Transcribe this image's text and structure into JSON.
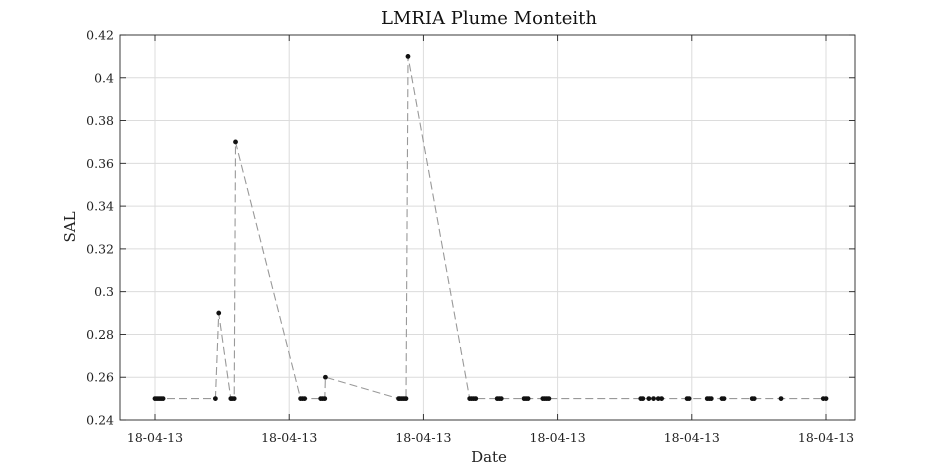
{
  "chart_data": {
    "type": "line",
    "title": "LMRIA Plume Monteith",
    "xlabel": "Date",
    "ylabel": "SAL",
    "xlim": [
      0,
      1000
    ],
    "ylim": [
      0.24,
      0.42
    ],
    "x_ticks": [
      0,
      200,
      400,
      600,
      800,
      1000
    ],
    "x_tick_labels": [
      "18-04-13",
      "18-04-13",
      "18-04-13",
      "18-04-13",
      "18-04-13",
      "18-04-13"
    ],
    "y_ticks": [
      0.24,
      0.26,
      0.28,
      0.3,
      0.32,
      0.34,
      0.36,
      0.38,
      0.4,
      0.42
    ],
    "y_tick_labels": [
      "0.24",
      "0.26",
      "0.28",
      "0.3",
      "0.32",
      "0.34",
      "0.36",
      "0.38",
      "0.4",
      "0.42"
    ],
    "grid": true,
    "line_color": "#999999",
    "marker_color": "#111111",
    "series": [
      {
        "x": [
          0,
          3,
          6,
          9,
          12,
          90,
          95,
          113,
          115,
          118,
          120,
          217,
          220,
          223,
          247,
          250,
          253,
          254,
          363,
          365,
          368,
          371,
          374,
          377,
          469,
          472,
          475,
          478,
          510,
          513,
          516,
          550,
          553,
          556,
          578,
          581,
          584,
          587,
          724,
          727,
          736,
          743,
          750,
          755,
          793,
          796,
          823,
          826,
          829,
          845,
          848,
          890,
          893,
          933,
          996,
          1000
        ],
        "y": [
          0.25,
          0.25,
          0.25,
          0.25,
          0.25,
          0.25,
          0.29,
          0.25,
          0.25,
          0.25,
          0.37,
          0.25,
          0.25,
          0.25,
          0.25,
          0.25,
          0.25,
          0.26,
          0.25,
          0.25,
          0.25,
          0.25,
          0.25,
          0.41,
          0.25,
          0.25,
          0.25,
          0.25,
          0.25,
          0.25,
          0.25,
          0.25,
          0.25,
          0.25,
          0.25,
          0.25,
          0.25,
          0.25,
          0.25,
          0.25,
          0.25,
          0.25,
          0.25,
          0.25,
          0.25,
          0.25,
          0.25,
          0.25,
          0.25,
          0.25,
          0.25,
          0.25,
          0.25,
          0.25,
          0.25,
          0.25
        ]
      }
    ]
  }
}
